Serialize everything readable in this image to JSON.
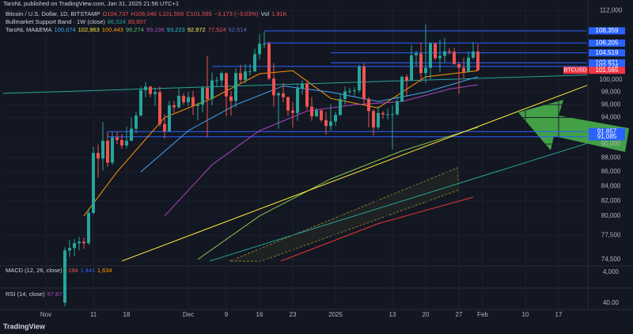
{
  "chart_data": {
    "type": "candlestick",
    "header": "TaroNL published on TradingView.com, Jan 31, 2025 21:56 UTC+1",
    "legend": {
      "symbol": "Bitcoin / U.S. Dollar, 1D, BITSTAMP",
      "ohlc": [
        "O104,737",
        "H106,046",
        "L101,556",
        "C101,565",
        "−3,173 (−3.03%)"
      ],
      "volume_name": "Vol",
      "volume": "1.81K",
      "band_name": "Bullmarket Support Band · 1W (close)",
      "band_values": [
        "86,524",
        "83,807"
      ],
      "ma_name": "TaroNL MA&EMA",
      "ma_values": [
        {
          "text": "100,674",
          "color": "#42a5f5"
        },
        {
          "text": "102,963",
          "color": "#ffeb3b"
        },
        {
          "text": "100,443",
          "color": "#ff9800"
        },
        {
          "text": "99,274",
          "color": "#66bb6a"
        },
        {
          "text": "99,198",
          "color": "#ab47bc"
        },
        {
          "text": "93,223",
          "color": "#26c6da"
        },
        {
          "text": "92,972",
          "color": "#ffee58"
        },
        {
          "text": "77,524",
          "color": "#ef5350"
        },
        {
          "text": "52,514",
          "color": "#5c6bc0"
        }
      ]
    },
    "up_color": "#26a69a",
    "down_color": "#ef5350",
    "log_scale": true,
    "grid": true,
    "xlim": [
      -9,
      114
    ],
    "ylim": [
      73800,
      112800
    ],
    "xticks": [
      {
        "value": 0,
        "label": "Nov"
      },
      {
        "value": 10,
        "label": "11"
      },
      {
        "value": 17,
        "label": "18"
      },
      {
        "value": 30,
        "label": "Dec"
      },
      {
        "value": 38,
        "label": "9"
      },
      {
        "value": 45,
        "label": "16"
      },
      {
        "value": 52,
        "label": "23"
      },
      {
        "value": 61,
        "label": "2025"
      },
      {
        "value": 73,
        "label": "13"
      },
      {
        "value": 80,
        "label": "20"
      },
      {
        "value": 87,
        "label": "27"
      },
      {
        "value": 92,
        "label": "Feb"
      },
      {
        "value": 101,
        "label": "10"
      },
      {
        "value": 108,
        "label": "17"
      }
    ],
    "yticks": [
      {
        "value": 112000,
        "label": "112,000"
      },
      {
        "value": 100000,
        "label": "100,000"
      },
      {
        "value": 98000,
        "label": "98,000"
      },
      {
        "value": 96000,
        "label": "96,000"
      },
      {
        "value": 94000,
        "label": "94,000"
      },
      {
        "value": 90000,
        "label": "90,000"
      },
      {
        "value": 88000,
        "label": "88,000"
      },
      {
        "value": 86000,
        "label": "86,000"
      },
      {
        "value": 84000,
        "label": "84,000"
      },
      {
        "value": 82000,
        "label": "82,000"
      },
      {
        "value": 80000,
        "label": "80,000"
      },
      {
        "value": 77500,
        "label": "77,500"
      },
      {
        "value": 74500,
        "label": "74,500"
      }
    ],
    "x": [
      4,
      5,
      6,
      7,
      8,
      9,
      10,
      11,
      12,
      13,
      14,
      15,
      16,
      17,
      18,
      19,
      20,
      21,
      22,
      23,
      24,
      25,
      26,
      27,
      28,
      29,
      30,
      31,
      32,
      33,
      34,
      35,
      36,
      37,
      38,
      39,
      40,
      41,
      42,
      43,
      44,
      45,
      46,
      47,
      48,
      49,
      50,
      51,
      52,
      53,
      54,
      55,
      56,
      57,
      58,
      59,
      60,
      61,
      62,
      63,
      64,
      65,
      66,
      67,
      68,
      69,
      70,
      71,
      72,
      73,
      74,
      75,
      76,
      77,
      78,
      79,
      80,
      81,
      82,
      83,
      84,
      85,
      86,
      87,
      88,
      89,
      90,
      91
    ],
    "open": [
      69400,
      75600,
      75900,
      76500,
      76700,
      76500,
      80400,
      88700,
      87900,
      90500,
      87300,
      91000,
      90600,
      89800,
      90500,
      92300,
      94300,
      98300,
      98900,
      97700,
      98000,
      93000,
      91900,
      95900,
      95600,
      97400,
      96400,
      97200,
      95800,
      96000,
      98700,
      96900,
      99900,
      99900,
      101100,
      97300,
      96600,
      101100,
      100000,
      101400,
      101400,
      104300,
      106100,
      106100,
      100200,
      97500,
      97800,
      97200,
      95100,
      94700,
      98600,
      99400,
      95700,
      94200,
      95100,
      93600,
      92700,
      93400,
      94400,
      96900,
      98100,
      98200,
      98300,
      102200,
      96900,
      95000,
      92500,
      94700,
      94500,
      94500,
      94500,
      96500,
      100500,
      99900,
      104100,
      104400,
      101100,
      102000,
      106100,
      103600,
      104000,
      104800,
      104700,
      102600,
      102000,
      101300,
      103700,
      104737
    ],
    "high": [
      76000,
      76900,
      77000,
      77300,
      77200,
      81000,
      89600,
      89900,
      93300,
      91800,
      91800,
      91900,
      91500,
      92600,
      94000,
      94900,
      98900,
      99600,
      99000,
      98700,
      98900,
      94500,
      96600,
      96600,
      98600,
      97800,
      98000,
      98200,
      96300,
      99000,
      104000,
      101200,
      100500,
      101400,
      101200,
      98200,
      101900,
      102500,
      102600,
      102600,
      105200,
      107800,
      108300,
      106500,
      102800,
      98100,
      99500,
      97300,
      96400,
      99400,
      99900,
      99900,
      97200,
      95500,
      95200,
      94900,
      96100,
      94900,
      97800,
      98900,
      98700,
      98800,
      102500,
      102700,
      97200,
      95300,
      95800,
      95000,
      95400,
      95900,
      97300,
      100700,
      100900,
      105900,
      104900,
      106300,
      109500,
      106400,
      106300,
      106800,
      107100,
      105300,
      105400,
      103000,
      103700,
      104800,
      106400,
      106046
    ],
    "low": [
      69000,
      74800,
      74900,
      75600,
      75800,
      76300,
      80200,
      85200,
      86200,
      86700,
      87000,
      90000,
      89300,
      89400,
      90400,
      91600,
      94200,
      97200,
      97200,
      95800,
      92600,
      90800,
      91800,
      94700,
      95400,
      96000,
      95800,
      94400,
      93600,
      94800,
      91000,
      95900,
      98900,
      98800,
      94200,
      94300,
      95600,
      99300,
      99400,
      100700,
      101300,
      103400,
      105300,
      100000,
      95700,
      92300,
      96400,
      94300,
      92500,
      93500,
      97600,
      95200,
      93500,
      94100,
      93300,
      91400,
      92000,
      92700,
      94300,
      96000,
      97700,
      97300,
      97900,
      96100,
      92500,
      91300,
      92200,
      93800,
      93700,
      89200,
      94300,
      96500,
      97300,
      99900,
      102300,
      99600,
      99500,
      100100,
      103300,
      101300,
      102800,
      104200,
      102500,
      97700,
      100300,
      101300,
      103400,
      101556
    ],
    "close": [
      75600,
      75900,
      76500,
      76700,
      76500,
      80400,
      88700,
      87900,
      90500,
      87300,
      91000,
      90600,
      89800,
      90500,
      92300,
      94300,
      98300,
      98900,
      97700,
      98000,
      93000,
      91900,
      95900,
      95600,
      97400,
      96400,
      97200,
      95800,
      96000,
      98700,
      96900,
      99900,
      99900,
      101100,
      97300,
      96600,
      101100,
      100000,
      101400,
      101400,
      104300,
      106100,
      106100,
      100200,
      97500,
      97800,
      97200,
      95100,
      94700,
      98600,
      99400,
      95700,
      94200,
      95100,
      93600,
      92700,
      93400,
      94400,
      96900,
      98100,
      98200,
      98300,
      102200,
      96900,
      95000,
      92500,
      94700,
      94500,
      94500,
      94500,
      96500,
      100500,
      99900,
      104100,
      104400,
      101100,
      102000,
      106100,
      103600,
      104000,
      104800,
      104700,
      102600,
      102000,
      101300,
      103700,
      104738,
      101565
    ],
    "symbol_tag": "BTCUSD",
    "price_label": {
      "value": 101565,
      "label": "101,565"
    },
    "levels": [
      {
        "value": 108359,
        "label": "108,359",
        "from": 46
      },
      {
        "value": 106205,
        "label": "106,205",
        "from": 46
      },
      {
        "value": 104519,
        "label": "104,519",
        "from": 60
      },
      {
        "value": 102821,
        "label": "102,821",
        "from": 60
      },
      {
        "value": 102224,
        "label": "102,224",
        "from": 35
      },
      {
        "value": 91857,
        "label": "91,857",
        "from": 13
      },
      {
        "value": 91085,
        "label": "91,085",
        "from": 13
      }
    ],
    "lines": [
      {
        "color": "#ff9800",
        "x": [
          8,
          15,
          25,
          35,
          45,
          52,
          60,
          70,
          80,
          91
        ],
        "values": [
          80000,
          86000,
          94000,
          97000,
          101000,
          101500,
          97000,
          95500,
          100500,
          101500
        ]
      },
      {
        "color": "#42a5f5",
        "x": [
          20,
          30,
          40,
          50,
          60,
          70,
          80,
          91
        ],
        "values": [
          86000,
          92000,
          96000,
          99000,
          98000,
          96500,
          98000,
          100500
        ]
      },
      {
        "color": "#ab47bc",
        "x": [
          25,
          35,
          45,
          55,
          65,
          75,
          85,
          91
        ],
        "values": [
          80000,
          87000,
          92000,
          95000,
          96000,
          96500,
          98500,
          99200
        ]
      },
      {
        "color": "#8bc34a",
        "x": [
          32,
          45,
          60,
          75,
          91
        ],
        "values": [
          74500,
          80000,
          85000,
          89000,
          92500
        ]
      },
      {
        "color": "#e53935",
        "x": [
          49.5,
          70,
          90
        ],
        "values": [
          74300,
          79000,
          82500
        ]
      },
      {
        "color": "#ffeb3b",
        "x": [
          16,
          114
        ],
        "values": [
          74300,
          99100
        ]
      },
      {
        "color": "#26a69a",
        "x": [
          -9,
          114
        ],
        "values": [
          97800,
          100800
        ]
      },
      {
        "color": "#26a69a",
        "x": [
          34.5,
          114
        ],
        "values": [
          74300,
          90100
        ]
      }
    ],
    "macd": {
      "name": "MACD (12, 26, close)",
      "values": [
        "−194",
        "1,441",
        "1,634"
      ],
      "axis": [
        "4,000"
      ]
    },
    "rsi": {
      "name": "RSI (14, close)",
      "value": "57.87",
      "axis": [
        "40.00"
      ]
    },
    "brand": "TradingView"
  }
}
